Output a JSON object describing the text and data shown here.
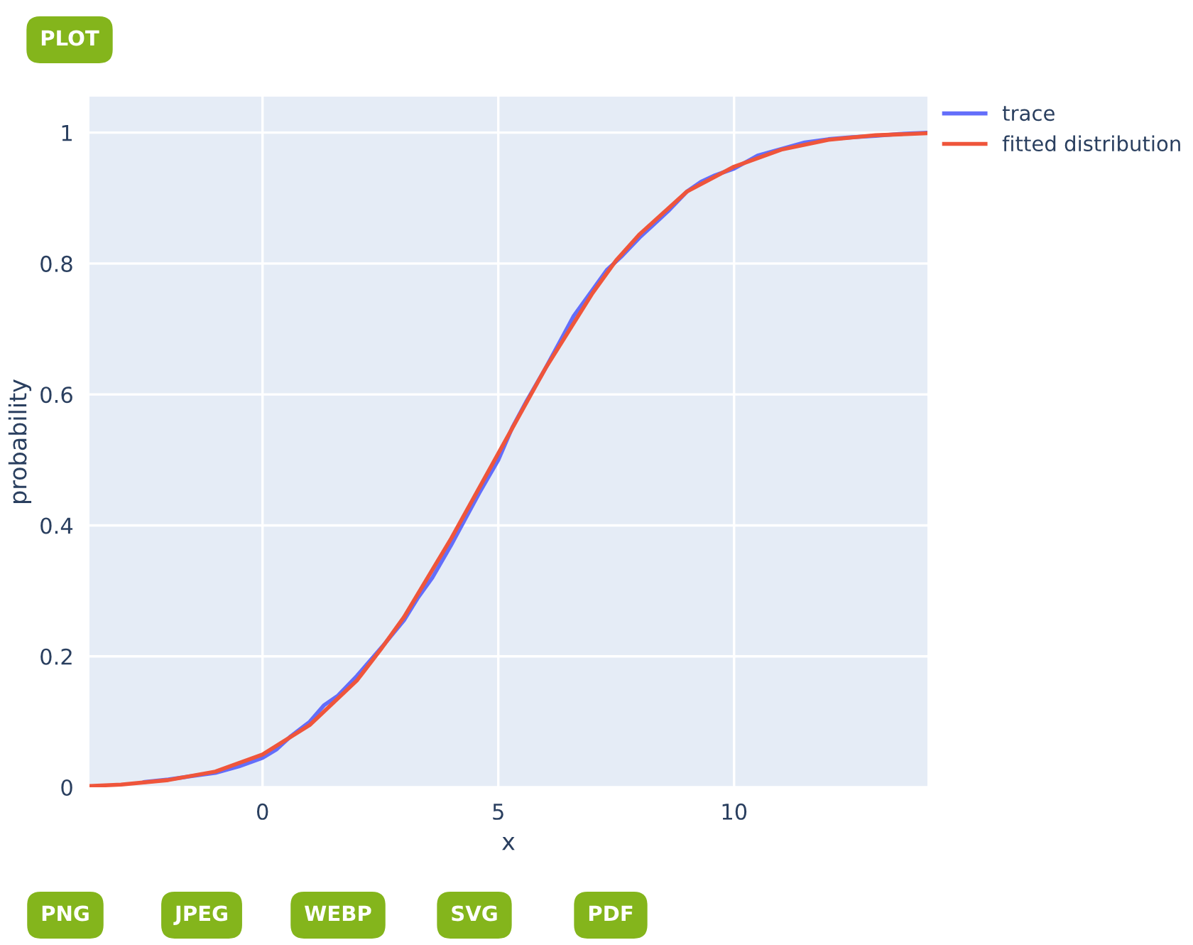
{
  "chart_data": {
    "type": "line",
    "xlabel": "x",
    "ylabel": "probability",
    "annotations": [
      "PLOT",
      "PNG",
      "JPEG",
      "WEBP",
      "SVG",
      "PDF"
    ],
    "xlim": [
      -3.67,
      14.1
    ],
    "ylim": [
      0,
      1.055
    ],
    "xticks": [
      0,
      5,
      10
    ],
    "yticks": [
      0,
      0.2,
      0.4,
      0.6,
      0.8,
      1
    ],
    "grid": true,
    "legend": "top right",
    "line_style": "solid",
    "marker": "none",
    "series": [
      {
        "name": "trace",
        "color": "#636efa",
        "x": [
          -2.5,
          -2,
          -1.5,
          -1,
          -0.5,
          0,
          0.3,
          0.6,
          1,
          1.3,
          1.6,
          2,
          2.3,
          2.6,
          3,
          3.3,
          3.6,
          4,
          4.3,
          4.6,
          5,
          5.3,
          5.6,
          6,
          6.3,
          6.6,
          7,
          7.3,
          7.6,
          8,
          8.3,
          8.6,
          9,
          9.3,
          9.6,
          10,
          10.5,
          11,
          11.5,
          12,
          12.5,
          13,
          13.5,
          14.1
        ],
        "values": [
          0.008,
          0.012,
          0.017,
          0.022,
          0.032,
          0.045,
          0.058,
          0.078,
          0.1,
          0.125,
          0.14,
          0.17,
          0.195,
          0.22,
          0.255,
          0.29,
          0.32,
          0.37,
          0.41,
          0.45,
          0.5,
          0.55,
          0.59,
          0.64,
          0.68,
          0.72,
          0.76,
          0.79,
          0.81,
          0.84,
          0.86,
          0.88,
          0.91,
          0.925,
          0.935,
          0.945,
          0.965,
          0.975,
          0.985,
          0.99,
          0.993,
          0.995,
          0.998,
          1.0
        ]
      },
      {
        "name": "fitted distribution",
        "color": "#ef553b",
        "x": [
          -3.67,
          -3,
          -2,
          -1,
          0,
          1,
          2,
          2.5,
          3,
          4,
          5,
          6,
          7,
          7.5,
          8,
          9,
          10,
          11,
          12,
          13,
          14.1
        ],
        "values": [
          0.002,
          0.004,
          0.011,
          0.024,
          0.05,
          0.095,
          0.163,
          0.21,
          0.26,
          0.38,
          0.51,
          0.64,
          0.755,
          0.805,
          0.845,
          0.91,
          0.948,
          0.974,
          0.989,
          0.996,
          0.999
        ]
      }
    ]
  }
}
